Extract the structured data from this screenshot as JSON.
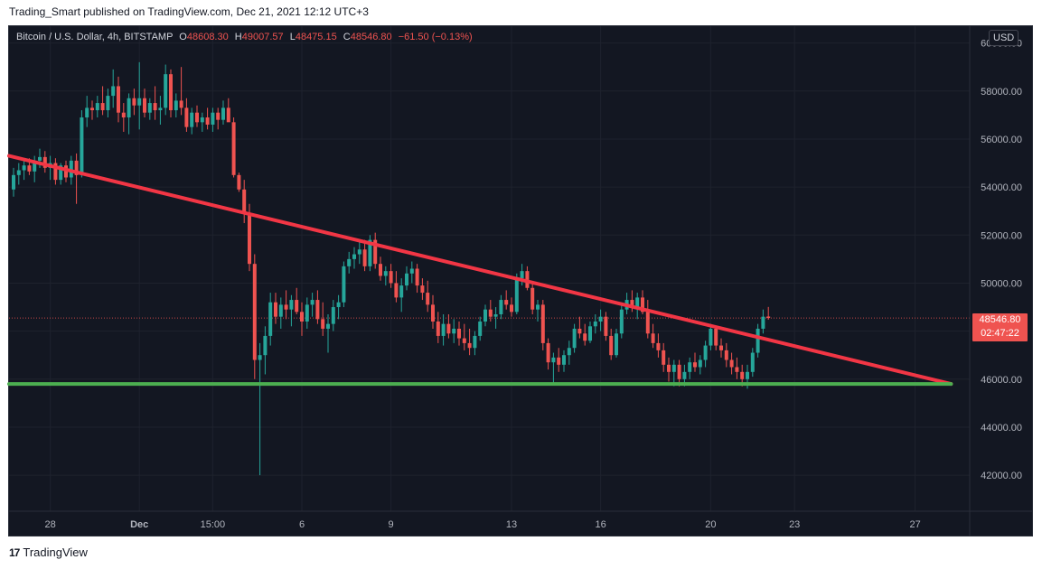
{
  "header": {
    "text": "Trading_Smart published on TradingView.com, Dec 21, 2021 12:12 UTC+3"
  },
  "legend": {
    "symbol": "Bitcoin / U.S. Dollar, 4h, BITSTAMP",
    "open_key": "O",
    "open": "48608.30",
    "high_key": "H",
    "high": "49007.57",
    "low_key": "L",
    "low": "48475.15",
    "close_key": "C",
    "close": "48546.80",
    "change": "−61.50 (−0.13%)"
  },
  "currency_badge": "USD",
  "price_tag": {
    "price": "48546.80",
    "countdown": "02:47:22"
  },
  "footer": {
    "brand": "TradingView",
    "logo_text": "17"
  },
  "colors": {
    "background": "#131722",
    "grid": "#1e222d",
    "up": "#26a69a",
    "down": "#ef5350",
    "trendline": "#f23645",
    "support": "#4caf50",
    "axis_text": "#b2b5be"
  },
  "chart_data": {
    "type": "candlestick",
    "symbol": "Bitcoin / U.S. Dollar",
    "interval": "4h",
    "exchange": "BITSTAMP",
    "ylim": [
      40500,
      60700
    ],
    "y_ticks": [
      "60000.00",
      "58000.00",
      "56000.00",
      "54000.00",
      "52000.00",
      "50000.00",
      "48000.00",
      "46000.00",
      "44000.00",
      "42000.00"
    ],
    "x_ticks": [
      "28",
      "Dec",
      "15:00",
      "6",
      "9",
      "13",
      "16",
      "20",
      "23",
      "27"
    ],
    "x_tick_index": [
      7,
      24,
      38,
      55,
      72,
      95,
      112,
      133,
      149,
      172
    ],
    "last_price": 48546.8,
    "candles": [
      [
        53900,
        54800,
        53600,
        54500
      ],
      [
        54500,
        55000,
        54100,
        54700
      ],
      [
        54700,
        55100,
        54300,
        54900
      ],
      [
        54900,
        55200,
        54500,
        54650
      ],
      [
        54650,
        55300,
        54200,
        55100
      ],
      [
        55100,
        55600,
        54800,
        55250
      ],
      [
        55250,
        55500,
        54600,
        54800
      ],
      [
        54800,
        55300,
        54300,
        55000
      ],
      [
        55000,
        55200,
        54100,
        54300
      ],
      [
        54300,
        55000,
        54100,
        54900
      ],
      [
        54900,
        55100,
        54200,
        54400
      ],
      [
        54400,
        55300,
        54100,
        55100
      ],
      [
        55100,
        55400,
        53300,
        54500
      ],
      [
        54500,
        57200,
        54400,
        56900
      ],
      [
        56900,
        57800,
        56500,
        57300
      ],
      [
        57300,
        57600,
        56800,
        57200
      ],
      [
        57200,
        57800,
        56900,
        57500
      ],
      [
        57500,
        58200,
        57000,
        57200
      ],
      [
        57200,
        58100,
        56900,
        57800
      ],
      [
        57800,
        58900,
        57300,
        58200
      ],
      [
        58200,
        58600,
        56700,
        57100
      ],
      [
        57100,
        57500,
        56300,
        56900
      ],
      [
        56900,
        57900,
        56200,
        57700
      ],
      [
        57700,
        58100,
        57000,
        57400
      ],
      [
        57400,
        59200,
        56400,
        57700
      ],
      [
        57700,
        58100,
        56900,
        57100
      ],
      [
        57100,
        57700,
        56800,
        57500
      ],
      [
        57500,
        58200,
        56800,
        57200
      ],
      [
        57200,
        57800,
        56600,
        57300
      ],
      [
        57300,
        59100,
        57000,
        58700
      ],
      [
        58700,
        58900,
        56900,
        57200
      ],
      [
        57200,
        57900,
        56900,
        57600
      ],
      [
        57600,
        59000,
        57000,
        57300
      ],
      [
        57300,
        57700,
        56300,
        56500
      ],
      [
        56500,
        57300,
        56200,
        57100
      ],
      [
        57100,
        57400,
        56500,
        56700
      ],
      [
        56700,
        57100,
        56300,
        56900
      ],
      [
        56900,
        57300,
        56400,
        56600
      ],
      [
        56600,
        57300,
        56300,
        57100
      ],
      [
        57100,
        57300,
        56400,
        56800
      ],
      [
        56800,
        57600,
        56600,
        57300
      ],
      [
        57300,
        57700,
        56800,
        56700
      ],
      [
        56700,
        56900,
        54400,
        54500
      ],
      [
        54500,
        54600,
        53800,
        53900
      ],
      [
        53900,
        54300,
        52500,
        52900
      ],
      [
        52900,
        53300,
        50500,
        50800
      ],
      [
        50800,
        51200,
        46000,
        46800
      ],
      [
        46800,
        47500,
        42000,
        47000
      ],
      [
        47000,
        48200,
        46200,
        47800
      ],
      [
        47800,
        49600,
        47400,
        49200
      ],
      [
        49200,
        49600,
        48300,
        48600
      ],
      [
        48600,
        49400,
        48100,
        49100
      ],
      [
        49100,
        49700,
        48500,
        48900
      ],
      [
        48900,
        49500,
        48200,
        49300
      ],
      [
        49300,
        49800,
        48700,
        48800
      ],
      [
        48800,
        49200,
        47800,
        48400
      ],
      [
        48400,
        49400,
        48100,
        49100
      ],
      [
        49100,
        49600,
        48600,
        49300
      ],
      [
        49300,
        49700,
        48300,
        48500
      ],
      [
        48500,
        49200,
        47800,
        48100
      ],
      [
        48100,
        48700,
        47100,
        48300
      ],
      [
        48300,
        49300,
        48000,
        49000
      ],
      [
        49000,
        49500,
        48500,
        49200
      ],
      [
        49200,
        50900,
        49000,
        50700
      ],
      [
        50700,
        51300,
        50400,
        51000
      ],
      [
        51000,
        51500,
        50600,
        51200
      ],
      [
        51200,
        51700,
        50800,
        51400
      ],
      [
        51400,
        51800,
        50500,
        50700
      ],
      [
        50700,
        52000,
        50500,
        51800
      ],
      [
        51800,
        52100,
        50600,
        50800
      ],
      [
        50800,
        51100,
        50100,
        50300
      ],
      [
        50300,
        50700,
        49900,
        50500
      ],
      [
        50500,
        50800,
        49800,
        50000
      ],
      [
        50000,
        50500,
        49200,
        49400
      ],
      [
        49400,
        50200,
        48800,
        49900
      ],
      [
        49900,
        50700,
        49700,
        50400
      ],
      [
        50400,
        50900,
        50000,
        50600
      ],
      [
        50600,
        50800,
        49600,
        49900
      ],
      [
        49900,
        50200,
        49300,
        49600
      ],
      [
        49600,
        50100,
        48800,
        49100
      ],
      [
        49100,
        49500,
        48100,
        48400
      ],
      [
        48400,
        48800,
        47500,
        47800
      ],
      [
        47800,
        48700,
        47400,
        48300
      ],
      [
        48300,
        48700,
        47700,
        47900
      ],
      [
        47900,
        48500,
        47500,
        48100
      ],
      [
        48100,
        48400,
        47400,
        47700
      ],
      [
        47700,
        48300,
        47200,
        47500
      ],
      [
        47500,
        48100,
        47000,
        47300
      ],
      [
        47300,
        48000,
        47000,
        47800
      ],
      [
        47800,
        48600,
        47600,
        48400
      ],
      [
        48400,
        49100,
        48200,
        48900
      ],
      [
        48900,
        49300,
        48400,
        48600
      ],
      [
        48600,
        49000,
        48100,
        48700
      ],
      [
        48700,
        49500,
        48500,
        49300
      ],
      [
        49300,
        49700,
        48900,
        49100
      ],
      [
        49100,
        49400,
        48600,
        48800
      ],
      [
        48800,
        50400,
        48700,
        50200
      ],
      [
        50200,
        50800,
        49900,
        50500
      ],
      [
        50500,
        50700,
        49700,
        49800
      ],
      [
        49800,
        50000,
        48700,
        48900
      ],
      [
        48900,
        49300,
        48400,
        49100
      ],
      [
        49100,
        49300,
        47200,
        47500
      ],
      [
        47500,
        47700,
        46400,
        46700
      ],
      [
        46700,
        47100,
        45800,
        46900
      ],
      [
        46900,
        47300,
        46300,
        46600
      ],
      [
        46600,
        47200,
        46300,
        47000
      ],
      [
        47000,
        47600,
        46600,
        47300
      ],
      [
        47300,
        48300,
        47100,
        48100
      ],
      [
        48100,
        48600,
        47700,
        47900
      ],
      [
        47900,
        48300,
        47400,
        47600
      ],
      [
        47600,
        48400,
        47500,
        48200
      ],
      [
        48200,
        48700,
        47900,
        48400
      ],
      [
        48400,
        48900,
        48000,
        48600
      ],
      [
        48600,
        48800,
        47600,
        47800
      ],
      [
        47800,
        48100,
        46800,
        47000
      ],
      [
        47000,
        48100,
        46900,
        47900
      ],
      [
        47900,
        49200,
        47700,
        48900
      ],
      [
        48900,
        49600,
        48700,
        49300
      ],
      [
        49300,
        49700,
        48800,
        49000
      ],
      [
        49000,
        49600,
        48500,
        49400
      ],
      [
        49400,
        49700,
        48700,
        48800
      ],
      [
        48800,
        49300,
        47700,
        47900
      ],
      [
        47900,
        48300,
        47300,
        47500
      ],
      [
        47500,
        47900,
        46900,
        47200
      ],
      [
        47200,
        47500,
        46300,
        46600
      ],
      [
        46600,
        46900,
        45900,
        46300
      ],
      [
        46300,
        46800,
        45700,
        46600
      ],
      [
        46600,
        46800,
        45700,
        46000
      ],
      [
        46000,
        46600,
        45700,
        46300
      ],
      [
        46300,
        46900,
        46000,
        46700
      ],
      [
        46700,
        47100,
        46300,
        46500
      ],
      [
        46500,
        47000,
        46200,
        46800
      ],
      [
        46800,
        47600,
        46500,
        47400
      ],
      [
        47400,
        48300,
        47200,
        48100
      ],
      [
        48100,
        48200,
        47200,
        47400
      ],
      [
        47400,
        47700,
        46900,
        47200
      ],
      [
        47200,
        47500,
        46500,
        46800
      ],
      [
        46800,
        47100,
        46200,
        46500
      ],
      [
        46500,
        46900,
        46000,
        46300
      ],
      [
        46300,
        46600,
        45700,
        46000
      ],
      [
        46000,
        46600,
        45600,
        46300
      ],
      [
        46300,
        47300,
        46100,
        47100
      ],
      [
        47100,
        48300,
        46900,
        48100
      ],
      [
        48100,
        48900,
        47900,
        48600
      ],
      [
        48608.3,
        49007.57,
        48475.15,
        48546.8
      ]
    ],
    "lines": [
      {
        "name": "descending trendline",
        "color": "#f23645",
        "points": [
          [
            0,
            55300
          ],
          [
            178,
            45800
          ]
        ]
      },
      {
        "name": "horizontal support",
        "color": "#4caf50",
        "points": [
          [
            0,
            45800
          ],
          [
            178,
            45800
          ]
        ]
      }
    ],
    "grid": true
  }
}
